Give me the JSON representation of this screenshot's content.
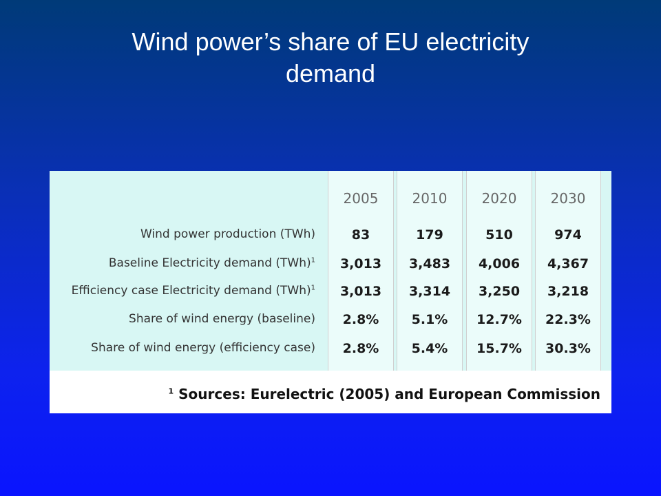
{
  "slide": {
    "title_line1": "Wind power’s share of EU electricity",
    "title_line2": "demand"
  },
  "table": {
    "years": [
      "2005",
      "2010",
      "2020",
      "2030"
    ],
    "rows": [
      {
        "label": "Wind power production (TWh)",
        "sup": "",
        "values": [
          "83",
          "179",
          "510",
          "974"
        ]
      },
      {
        "label": "Baseline Electricity demand (TWh)",
        "sup": "1",
        "values": [
          "3,013",
          "3,483",
          "4,006",
          "4,367"
        ]
      },
      {
        "label": "Efficiency case Electricity demand (TWh)",
        "sup": "1",
        "values": [
          "3,013",
          "3,314",
          "3,250",
          "3,218"
        ]
      },
      {
        "label": "Share of wind energy (baseline)",
        "sup": "",
        "values": [
          "2.8%",
          "5.1%",
          "12.7%",
          "22.3%"
        ]
      },
      {
        "label": "Share of wind energy (efficiency case)",
        "sup": "",
        "values": [
          "2.8%",
          "5.4%",
          "15.7%",
          "30.3%"
        ]
      }
    ],
    "footnote_mark": "1",
    "footnote": "Sources: Eurelectric (2005) and European Commission"
  }
}
